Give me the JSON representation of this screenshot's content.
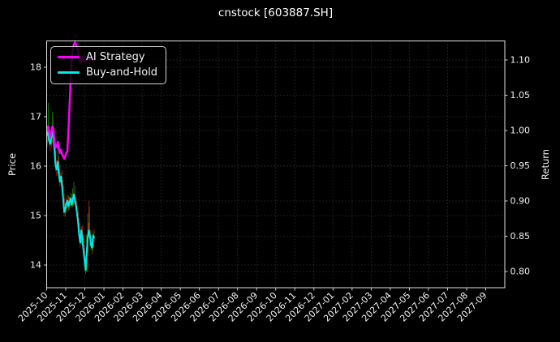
{
  "window": {
    "title": "cnstock [603887.SH]"
  },
  "colors": {
    "background": "#000000",
    "text": "#f2f2f2",
    "spine": "#e0e0e0",
    "grid": "#4a4a4a",
    "candle_up": "#00c400",
    "candle_down": "#e33322",
    "ai_line": "#ff00ff",
    "buy_hold_line": "#00e8e8"
  },
  "legend": {
    "items": [
      {
        "label": "AI Strategy",
        "color": "#ff00ff"
      },
      {
        "label": "Buy-and-Hold",
        "color": "#00e8e8"
      }
    ]
  },
  "axes": {
    "left_label": "Price",
    "right_label": "Return"
  },
  "chart_data": {
    "type": "candlestick",
    "title": "cnstock [603887.SH]",
    "grid": true,
    "legend_position": "upper left",
    "x_tick_labels": [
      "2025-10",
      "2025-11",
      "2025-12",
      "2026-01",
      "2026-02",
      "2026-03",
      "2026-04",
      "2026-05",
      "2026-06",
      "2026-07",
      "2026-08",
      "2026-09",
      "2026-10",
      "2026-11",
      "2026-12",
      "2027-01",
      "2027-02",
      "2027-03",
      "2027-04",
      "2027-05",
      "2027-06",
      "2027-07",
      "2027-08",
      "2027-09"
    ],
    "price_axis": {
      "label": "Price",
      "ticks": [
        14,
        15,
        16,
        17,
        18
      ],
      "range": [
        13.54,
        18.56
      ]
    },
    "return_axis": {
      "label": "Return",
      "ticks": [
        "0.80",
        "0.85",
        "0.90",
        "0.95",
        "1.00",
        "1.05",
        "1.10"
      ],
      "range": [
        0.777,
        1.128
      ]
    },
    "dates": [
      "2025-10-09",
      "2025-10-10",
      "2025-10-13",
      "2025-10-14",
      "2025-10-15",
      "2025-10-16",
      "2025-10-17",
      "2025-10-20",
      "2025-10-21",
      "2025-10-22",
      "2025-10-23",
      "2025-10-24",
      "2025-10-27",
      "2025-10-28",
      "2025-10-29",
      "2025-10-30",
      "2025-10-31",
      "2025-11-03",
      "2025-11-04",
      "2025-11-05",
      "2025-11-06",
      "2025-11-07",
      "2025-11-10",
      "2025-11-11",
      "2025-11-12",
      "2025-11-13",
      "2025-11-14",
      "2025-11-17",
      "2025-11-18",
      "2025-11-19",
      "2025-11-20",
      "2025-11-21",
      "2025-11-24",
      "2025-11-25",
      "2025-11-26",
      "2025-11-27",
      "2025-11-28",
      "2025-12-01",
      "2025-12-02",
      "2025-12-03",
      "2025-12-04",
      "2025-12-05",
      "2025-12-08",
      "2025-12-09",
      "2025-12-10"
    ],
    "candles": {
      "open": [
        16.45,
        16.62,
        16.7,
        16.5,
        16.45,
        16.58,
        16.78,
        16.6,
        16.3,
        16.0,
        15.93,
        16.09,
        15.84,
        15.68,
        15.79,
        15.6,
        15.35,
        15.07,
        15.14,
        15.25,
        15.3,
        15.19,
        15.28,
        15.35,
        15.22,
        15.32,
        15.43,
        15.3,
        15.2,
        15.05,
        14.85,
        14.6,
        14.45,
        14.7,
        14.52,
        14.3,
        14.1,
        13.9,
        14.25,
        14.85,
        14.7,
        14.6,
        14.4,
        14.35,
        14.6
      ],
      "high": [
        16.75,
        17.28,
        16.8,
        16.62,
        16.68,
        17.1,
        16.98,
        16.72,
        16.42,
        16.12,
        16.45,
        16.2,
        15.95,
        15.88,
        15.92,
        15.72,
        15.45,
        15.25,
        15.35,
        15.42,
        15.4,
        15.38,
        15.45,
        15.44,
        15.55,
        15.68,
        15.6,
        15.38,
        15.3,
        15.12,
        14.95,
        14.72,
        14.78,
        14.8,
        14.62,
        14.42,
        14.18,
        14.62,
        15.05,
        15.3,
        15.18,
        14.72,
        14.52,
        14.68,
        14.72
      ],
      "low": [
        16.38,
        16.52,
        16.4,
        16.3,
        16.38,
        16.48,
        16.55,
        16.22,
        15.9,
        15.8,
        15.85,
        15.78,
        15.58,
        15.62,
        15.52,
        15.28,
        14.98,
        15.0,
        15.08,
        15.15,
        15.1,
        15.12,
        15.2,
        15.15,
        15.18,
        15.25,
        15.22,
        15.12,
        14.98,
        14.78,
        14.52,
        14.35,
        14.4,
        14.45,
        14.22,
        14.02,
        13.82,
        13.86,
        14.18,
        14.55,
        14.5,
        14.3,
        14.22,
        14.28,
        14.45
      ],
      "close": [
        16.62,
        16.7,
        16.5,
        16.45,
        16.58,
        16.78,
        16.6,
        16.3,
        16.0,
        15.93,
        16.09,
        15.84,
        15.68,
        15.79,
        15.6,
        15.35,
        15.07,
        15.14,
        15.25,
        15.3,
        15.19,
        15.28,
        15.35,
        15.22,
        15.32,
        15.43,
        15.3,
        15.2,
        15.05,
        14.85,
        14.6,
        14.45,
        14.7,
        14.52,
        14.3,
        14.1,
        13.9,
        14.25,
        14.55,
        14.7,
        14.6,
        14.4,
        14.35,
        14.6,
        14.55
      ]
    },
    "series": [
      {
        "name": "AI Strategy",
        "axis": "return",
        "color": "#ff00ff",
        "values": [
          1.0,
          1.006,
          0.998,
          0.99,
          0.997,
          1.006,
          0.998,
          0.984,
          0.975,
          0.978,
          0.984,
          0.976,
          0.968,
          0.973,
          0.966,
          0.963,
          0.96,
          0.964,
          0.968,
          0.97,
          1.0,
          1.035,
          1.07,
          1.1,
          1.115,
          1.122,
          1.125,
          1.122,
          1.118,
          1.112,
          1.105,
          1.096,
          1.1,
          1.105,
          1.102,
          1.099,
          1.098,
          1.1,
          1.101,
          1.1,
          1.1,
          1.1,
          1.1,
          1.1,
          1.1
        ]
      },
      {
        "name": "Buy-and-Hold",
        "axis": "price",
        "color": "#00e8e8",
        "values": [
          16.62,
          16.7,
          16.5,
          16.45,
          16.58,
          16.78,
          16.6,
          16.3,
          16.0,
          15.93,
          16.09,
          15.84,
          15.68,
          15.79,
          15.6,
          15.35,
          15.07,
          15.14,
          15.25,
          15.3,
          15.19,
          15.28,
          15.35,
          15.22,
          15.32,
          15.43,
          15.3,
          15.2,
          15.05,
          14.85,
          14.6,
          14.45,
          14.7,
          14.52,
          14.3,
          14.1,
          13.9,
          14.25,
          14.55,
          14.7,
          14.6,
          14.4,
          14.35,
          14.6,
          14.55
        ]
      }
    ]
  }
}
